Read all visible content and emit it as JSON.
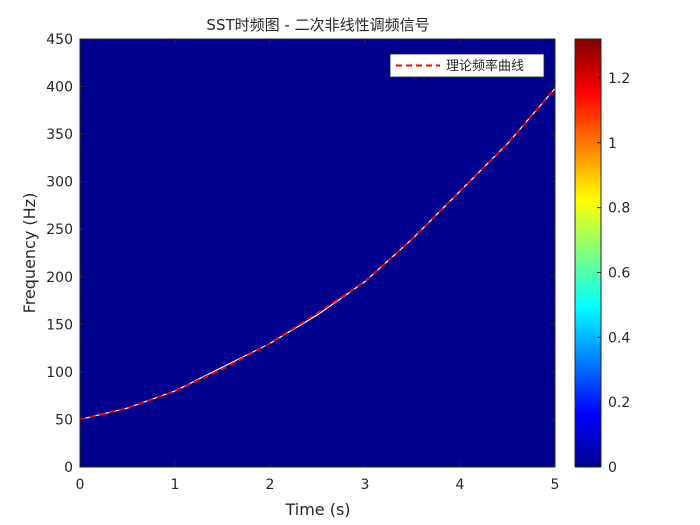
{
  "chart_data": {
    "type": "heatmap",
    "title": "SST时频图 - 二次非线性调频信号",
    "xlabel": "Time (s)",
    "ylabel": "Frequency (Hz)",
    "xlim": [
      0,
      5
    ],
    "ylim": [
      0,
      450
    ],
    "xticks": [
      0,
      1,
      2,
      3,
      4,
      5
    ],
    "yticks": [
      0,
      50,
      100,
      150,
      200,
      250,
      300,
      350,
      400,
      450
    ],
    "background_color": "#00008F",
    "ridge": {
      "t": [
        0,
        0.5,
        1,
        1.5,
        2,
        2.5,
        3,
        3.5,
        4,
        4.5,
        5
      ],
      "f": [
        50,
        62,
        80,
        105,
        130,
        160,
        195,
        240,
        290,
        340,
        398
      ],
      "color": "#ffffff"
    },
    "series": [
      {
        "name": "理论频率曲线",
        "style": "dashed",
        "color": "#ff0000",
        "t": [
          0,
          0.5,
          1,
          1.5,
          2,
          2.5,
          3,
          3.5,
          4,
          4.5,
          5
        ],
        "f": [
          50,
          62,
          80,
          103,
          130,
          162,
          195,
          240,
          290,
          340,
          398
        ]
      }
    ],
    "legend": {
      "position": "top-right",
      "entries": [
        "理论频率曲线"
      ]
    },
    "colorbar": {
      "colormap": "jet",
      "range": [
        0,
        1.32
      ],
      "ticks": [
        0,
        0.2,
        0.4,
        0.6,
        0.8,
        1,
        1.2
      ],
      "tick_labels": [
        "0",
        "0.2",
        "0.4",
        "0.6",
        "0.8",
        "1",
        "1.2"
      ]
    }
  }
}
